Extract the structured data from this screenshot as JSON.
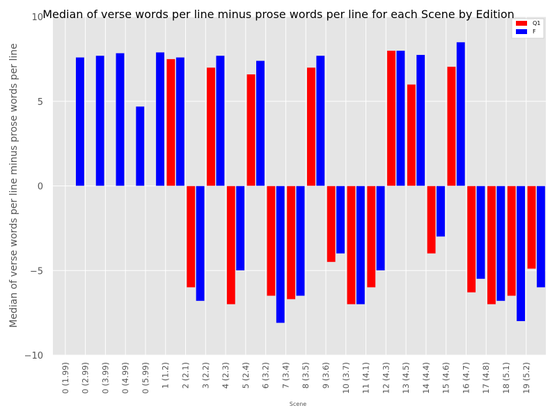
{
  "chart_data": {
    "type": "bar",
    "title": "Median of verse words per line minus prose words per line for each Scene by Edition",
    "xlabel": "Scene",
    "ylabel": "Median of verse words per line minus prose words per line",
    "ylim": [
      -10,
      10
    ],
    "yticks": [
      -10,
      -5,
      0,
      5,
      10
    ],
    "ytick_labels": [
      "−10",
      "−5",
      "0",
      "5",
      "10"
    ],
    "grid": true,
    "legend_position": "top-right",
    "categories": [
      "0 (1.99)",
      "0 (2.99)",
      "0 (3.99)",
      "0 (4.99)",
      "0 (5.99)",
      "1 (1.2)",
      "2 (2.1)",
      "3 (2.2)",
      "4 (2.3)",
      "5 (2.4)",
      "6 (3.2)",
      "7 (3.4)",
      "8 (3.5)",
      "9 (3.6)",
      "10 (3.7)",
      "11 (4.1)",
      "12 (4.3)",
      "13 (4.5)",
      "14 (4.4)",
      "15 (4.6)",
      "16 (4.7)",
      "17 (4.8)",
      "18 (5.1)",
      "19 (5.2)"
    ],
    "series": [
      {
        "name": "Q1",
        "color": "#ff0000",
        "values": [
          null,
          null,
          null,
          null,
          null,
          7.5,
          -6.0,
          7.0,
          -7.0,
          6.6,
          -6.5,
          -6.7,
          7.0,
          -4.5,
          -7.0,
          -6.0,
          8.0,
          6.0,
          -4.0,
          7.05,
          -6.3,
          -7.0,
          -6.5,
          -4.9
        ]
      },
      {
        "name": "F",
        "color": "#0000ff",
        "values": [
          7.6,
          7.7,
          7.85,
          4.7,
          7.9,
          7.6,
          -6.8,
          7.7,
          -5.0,
          7.4,
          -8.1,
          -6.5,
          7.7,
          -4.0,
          -7.0,
          -5.0,
          8.0,
          7.75,
          -3.0,
          8.5,
          -5.5,
          -6.8,
          -8.0,
          -6.0
        ]
      }
    ]
  },
  "colors": {
    "plot_background": "#e5e5e5",
    "grid": "#ffffff",
    "text": "#555555"
  }
}
